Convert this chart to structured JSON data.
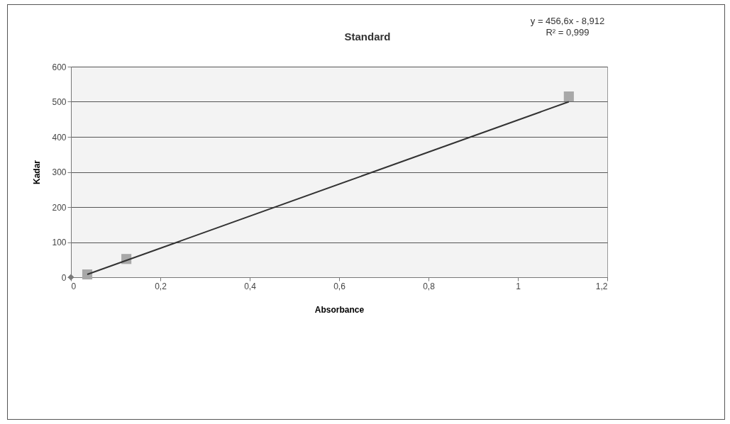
{
  "chart_data": {
    "type": "scatter",
    "title": "Standard",
    "xlabel": "Absorbance",
    "ylabel": "Kadar",
    "series": [
      {
        "marker": "diamond",
        "color": "#7a7a7a",
        "x": [
          0
        ],
        "values": [
          0
        ]
      },
      {
        "marker": "square",
        "color": "#a8a8a8",
        "x": [
          0.0365,
          0.124,
          1.114
        ],
        "values": [
          8,
          52,
          515
        ]
      },
      {
        "type": "line",
        "color": "#333333",
        "x": [
          0.0365,
          1.114
        ],
        "values": [
          8,
          500
        ]
      }
    ],
    "xlim": [
      0,
      1.2
    ],
    "xticks": [
      0,
      {
        "value": 0.2,
        "label": "0,2"
      },
      {
        "value": 0.4,
        "label": "0,4"
      },
      {
        "value": 0.6,
        "label": "0,6"
      },
      {
        "value": 0.8,
        "label": "0,8"
      },
      1,
      {
        "value": 1.2,
        "label": "1,2"
      }
    ],
    "ylim": [
      0,
      600
    ],
    "yticks": [
      0,
      100,
      200,
      300,
      400,
      500,
      600
    ],
    "grid": "y",
    "annotations": [
      "y = 456,6x - 8,912",
      "R² = 0,999"
    ]
  }
}
